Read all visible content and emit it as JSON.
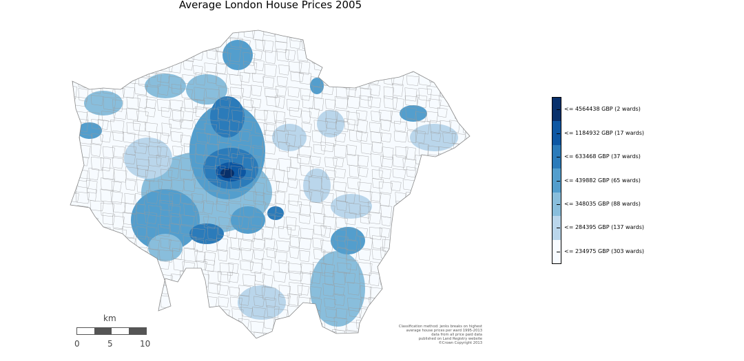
{
  "title": "Average London House Prices 2005",
  "legend": {
    "classes": [
      {
        "label": "<= 4564438 GBP (2 wards)",
        "color": "#08306b"
      },
      {
        "label": "<= 1184932 GBP (17 wards)",
        "color": "#0d57a3"
      },
      {
        "label": "<= 633468 GBP (37 wards)",
        "color": "#2b7bba"
      },
      {
        "label": "<= 439882 GBP (65 wards)",
        "color": "#539ecd"
      },
      {
        "label": "<= 348035 GBP (88 wards)",
        "color": "#89bedc"
      },
      {
        "label": "<= 284395 GBP (137 wards)",
        "color": "#bad6eb"
      },
      {
        "label": "<= 234975 GBP (303 wards)",
        "color": "#f7fbff"
      }
    ]
  },
  "scale_bar": {
    "unit": "km",
    "labels": [
      "0",
      "5",
      "10"
    ]
  },
  "credits": [
    "Classification method: jenks breaks on highest",
    "average house prices per ward 1995-2013",
    "data from all price paid data",
    "published on Land Registry website",
    "©Crown Copyright 2013"
  ]
}
